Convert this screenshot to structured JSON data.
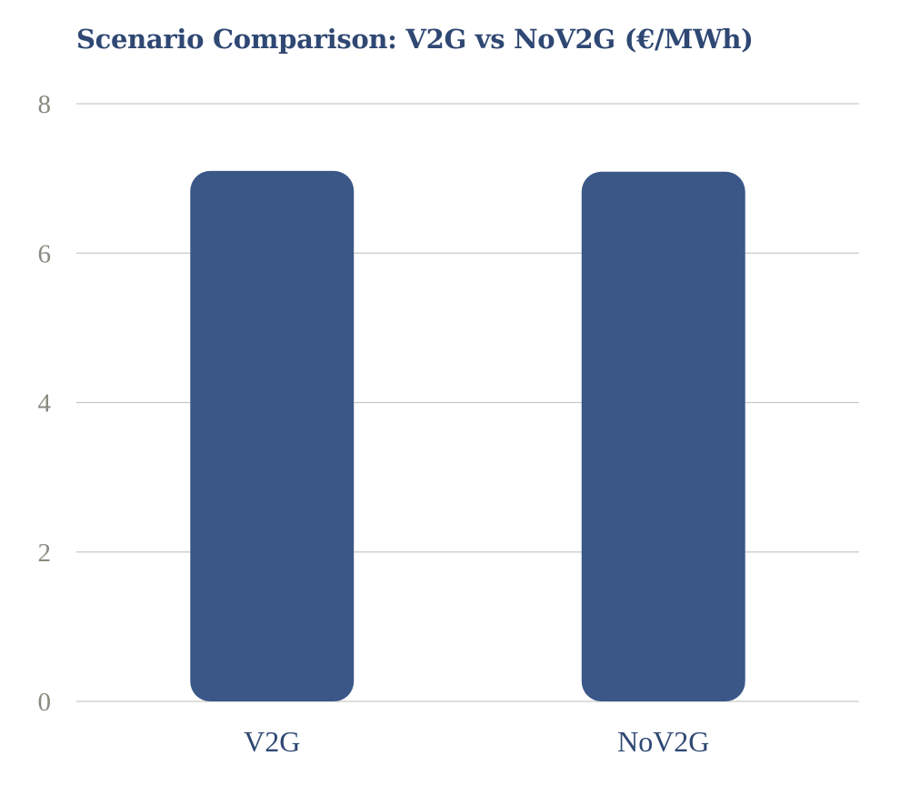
{
  "chart_data": {
    "type": "bar",
    "title": "Scenario Comparison: V2G vs NoV2G (€/MWh)",
    "categories": [
      "V2G",
      "NoV2G"
    ],
    "values": [
      7.1,
      7.09
    ],
    "ylim": [
      0,
      8
    ],
    "yticks": [
      0,
      2,
      4,
      6,
      8
    ],
    "grid": true,
    "legend": "none",
    "colors": {
      "bar": "#3a5787",
      "title": "#2f4873",
      "ticks": "#8a8a80",
      "grid": "#c9c9c9"
    }
  }
}
